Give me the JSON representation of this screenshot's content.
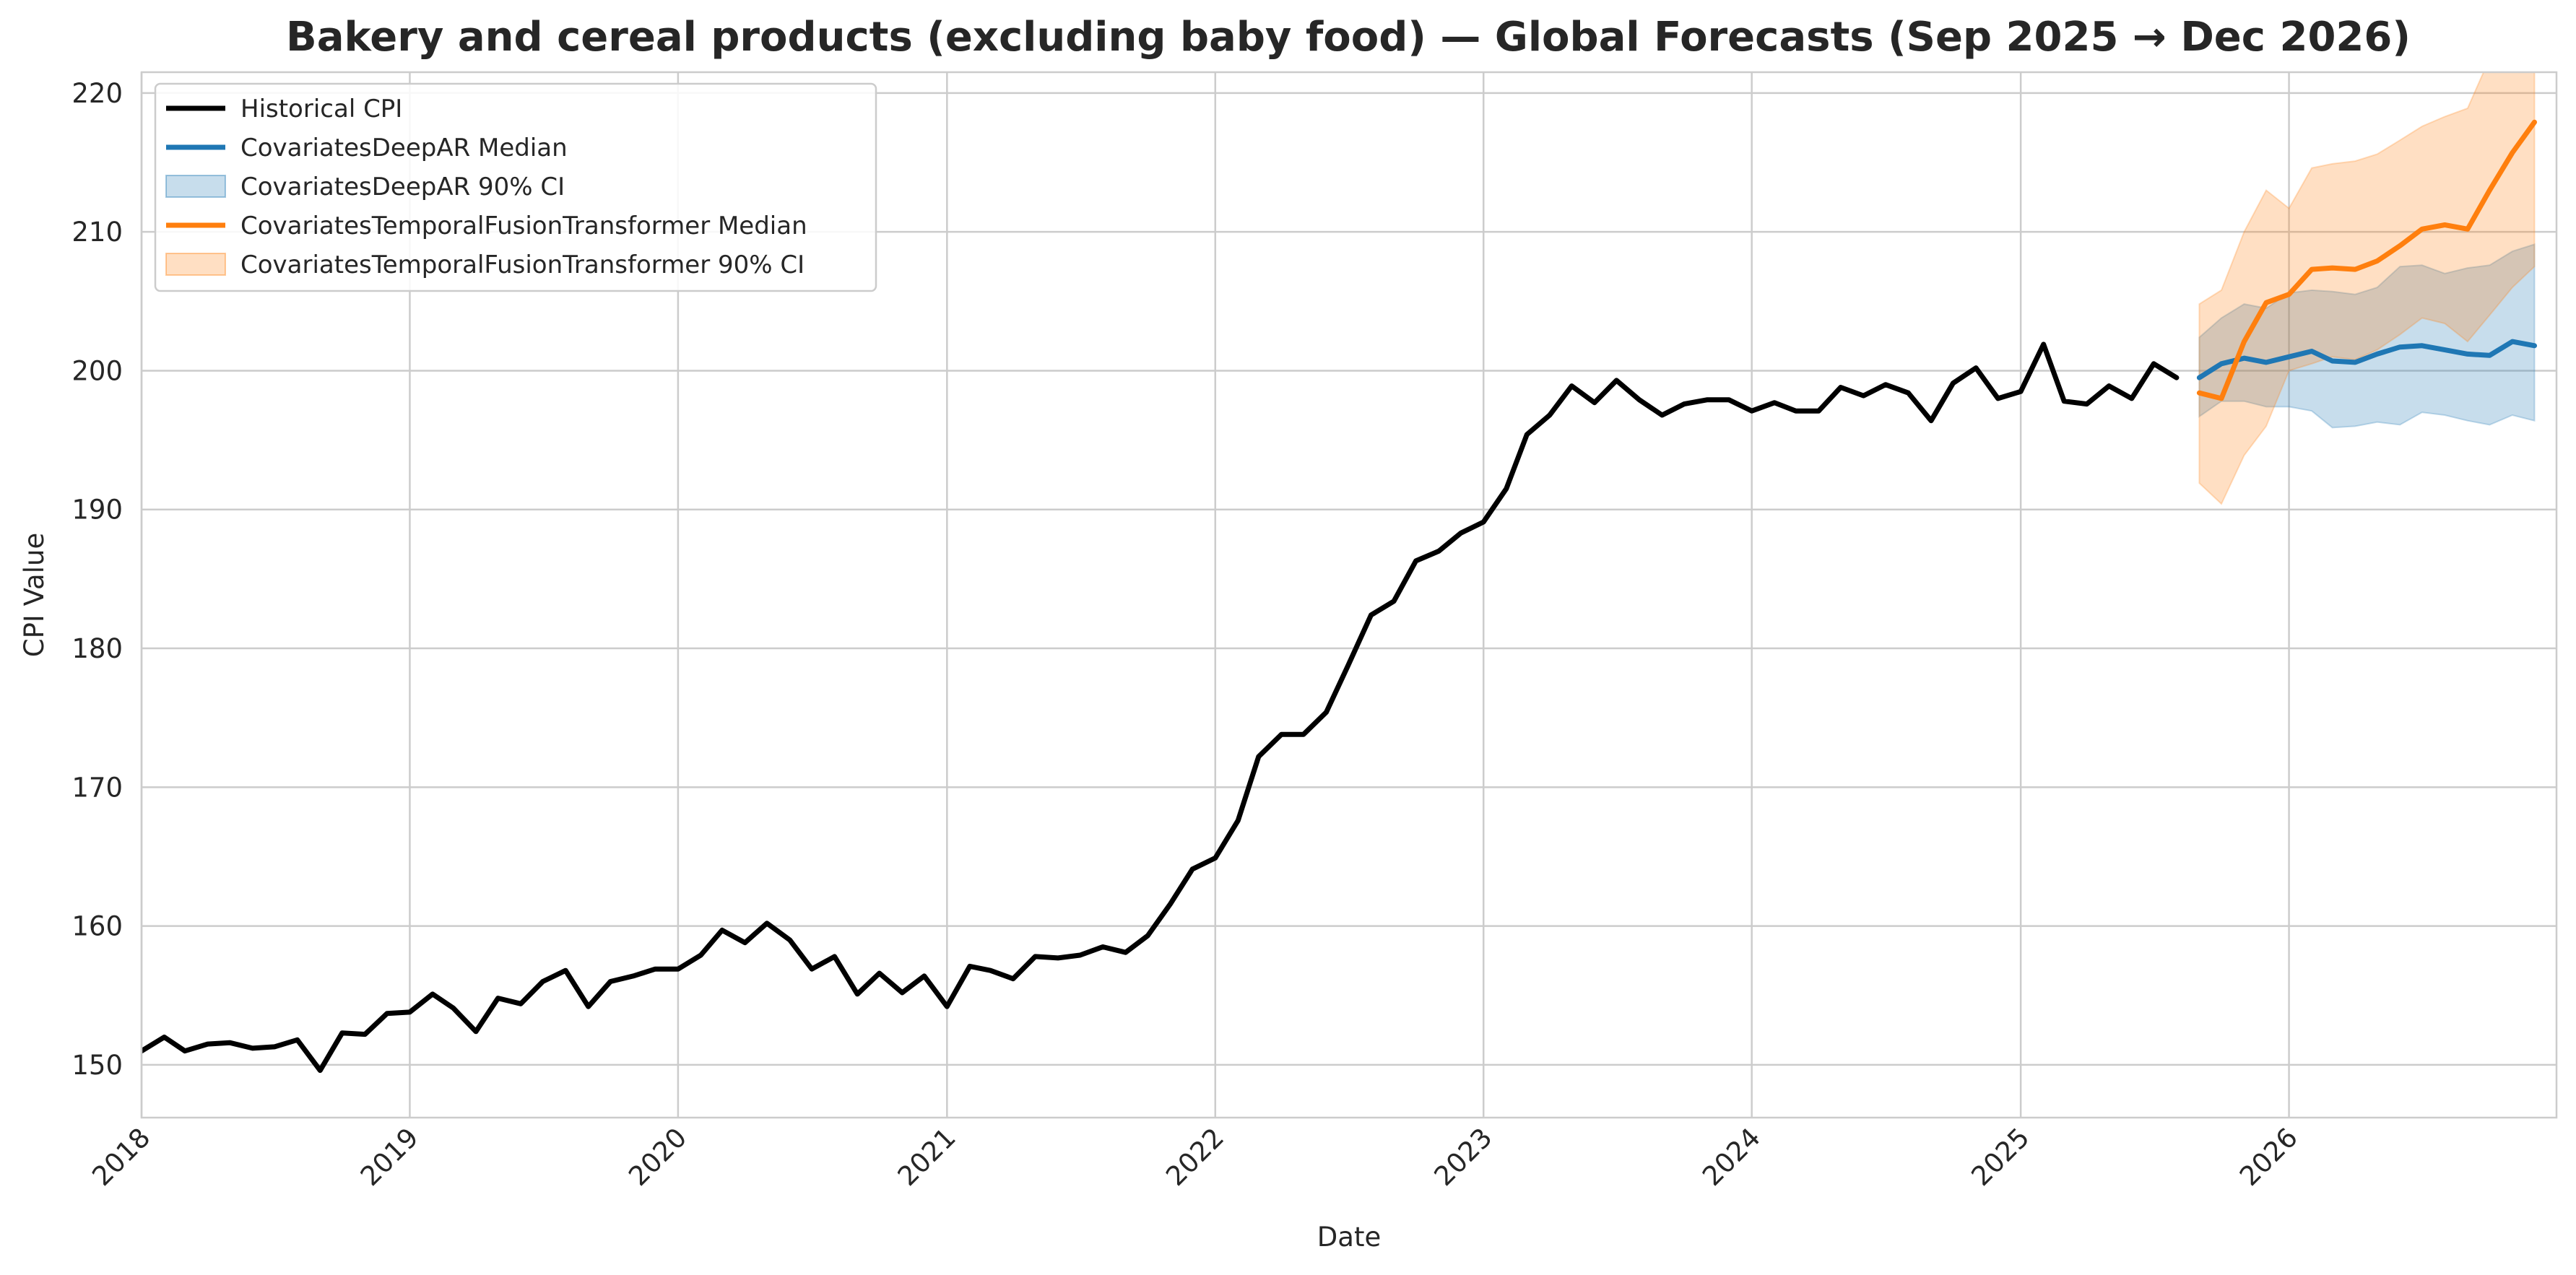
{
  "chart_data": {
    "type": "line",
    "title": "Bakery and cereal products (excluding baby food) — Global Forecasts (Sep 2025 → Dec 2026)",
    "xlabel": "Date",
    "ylabel": "CPI Value",
    "xlim": [
      "2018-01-01",
      "2026-12-31"
    ],
    "ylim": [
      146.2,
      221.5
    ],
    "x_ticks": [
      "2018",
      "2019",
      "2020",
      "2021",
      "2022",
      "2023",
      "2024",
      "2025",
      "2026"
    ],
    "y_ticks": [
      150,
      160,
      170,
      180,
      190,
      200,
      210,
      220
    ],
    "grid": true,
    "legend_position": "top-left",
    "series": [
      {
        "name": "Historical CPI",
        "kind": "line",
        "color": "#000000",
        "start": "2018-01",
        "values": [
          151.0,
          152.0,
          151.0,
          151.5,
          151.6,
          151.2,
          151.3,
          151.8,
          149.6,
          152.3,
          152.2,
          153.7,
          153.8,
          155.1,
          154.1,
          152.4,
          154.8,
          154.4,
          156.0,
          156.8,
          154.2,
          156.0,
          156.4,
          156.9,
          156.9,
          157.9,
          159.7,
          158.8,
          160.2,
          159.0,
          156.9,
          157.8,
          155.1,
          156.6,
          155.2,
          156.4,
          154.2,
          157.1,
          156.8,
          156.2,
          157.8,
          157.7,
          157.9,
          158.5,
          158.1,
          159.3,
          161.6,
          164.1,
          164.9,
          167.6,
          172.2,
          173.8,
          173.8,
          175.4,
          178.8,
          182.4,
          183.4,
          186.3,
          187.0,
          188.3,
          189.1,
          191.5,
          195.4,
          196.8,
          198.9,
          197.7,
          199.3,
          197.9,
          196.8,
          197.6,
          197.9,
          197.9,
          197.1,
          197.7,
          197.1,
          197.1,
          198.8,
          198.2,
          199.0,
          198.4,
          196.4,
          199.1,
          200.2,
          198.0,
          198.5,
          201.9,
          197.8,
          197.6,
          198.9,
          198.0,
          200.5,
          199.5
        ]
      },
      {
        "name": "CovariatesDeepAR Median",
        "kind": "line",
        "color": "#1f77b4",
        "start": "2025-09",
        "values": [
          199.5,
          200.5,
          200.9,
          200.6,
          201.0,
          201.4,
          200.7,
          200.6,
          201.2,
          201.7,
          201.8,
          201.5,
          201.2,
          201.1,
          202.1,
          201.8
        ]
      },
      {
        "name": "CovariatesDeepAR 90% CI",
        "kind": "band",
        "color": "#1f77b4",
        "start": "2025-09",
        "lower": [
          196.7,
          197.8,
          197.8,
          197.4,
          197.4,
          197.1,
          195.9,
          196.0,
          196.3,
          196.1,
          197.0,
          196.8,
          196.4,
          196.1,
          196.8,
          196.4
        ],
        "upper": [
          202.4,
          203.8,
          204.8,
          204.5,
          205.6,
          205.8,
          205.7,
          205.5,
          206.0,
          207.5,
          207.6,
          207.0,
          207.4,
          207.6,
          208.6,
          209.1
        ]
      },
      {
        "name": "CovariatesTemporalFusionTransformer Median",
        "kind": "line",
        "color": "#ff7f0e",
        "start": "2025-09",
        "values": [
          198.4,
          198.0,
          202.1,
          204.9,
          205.5,
          207.3,
          207.4,
          207.3,
          207.9,
          209.0,
          210.2,
          210.5,
          210.2,
          213.0,
          215.7,
          217.9
        ]
      },
      {
        "name": "CovariatesTemporalFusionTransformer 90% CI",
        "kind": "band",
        "color": "#ff7f0e",
        "start": "2025-09",
        "lower": [
          191.9,
          190.4,
          193.9,
          196.0,
          200.0,
          200.5,
          201.0,
          200.8,
          201.5,
          202.6,
          203.8,
          203.4,
          202.1,
          204.0,
          206.0,
          207.5
        ],
        "upper": [
          204.8,
          205.8,
          210.0,
          213.0,
          211.7,
          214.6,
          214.9,
          215.1,
          215.6,
          216.6,
          217.6,
          218.3,
          218.9,
          222.5,
          222.5,
          222.5
        ]
      }
    ]
  }
}
